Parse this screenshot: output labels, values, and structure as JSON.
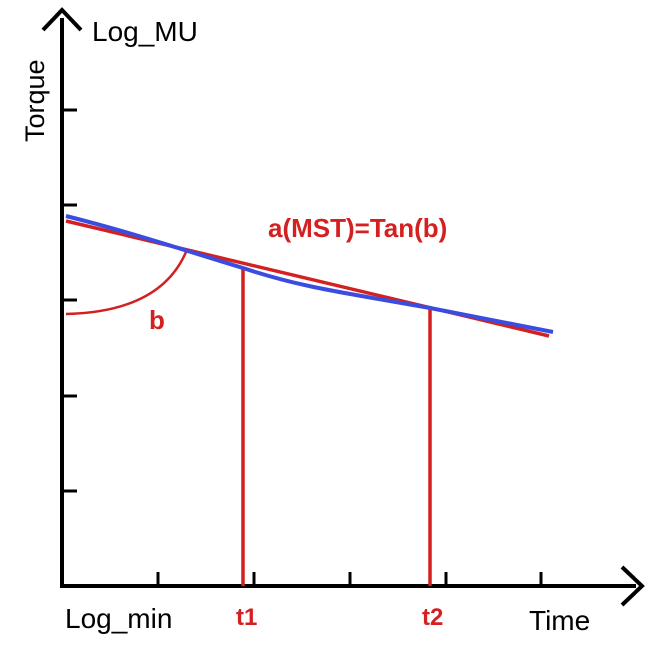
{
  "chart_data": {
    "type": "line",
    "y_axis": {
      "title": "Torque",
      "unit_label": "Log_MU"
    },
    "x_axis": {
      "title": "Time",
      "origin_label": "Log_min"
    },
    "markers": [
      "t1",
      "t2"
    ],
    "angle_label": "b",
    "formula": "a(MST)=Tan(b)",
    "colors": {
      "axes": "#000000",
      "fit_line": "#d42020",
      "data_curve": "#3b4de0",
      "annotation": "#d42020"
    }
  }
}
